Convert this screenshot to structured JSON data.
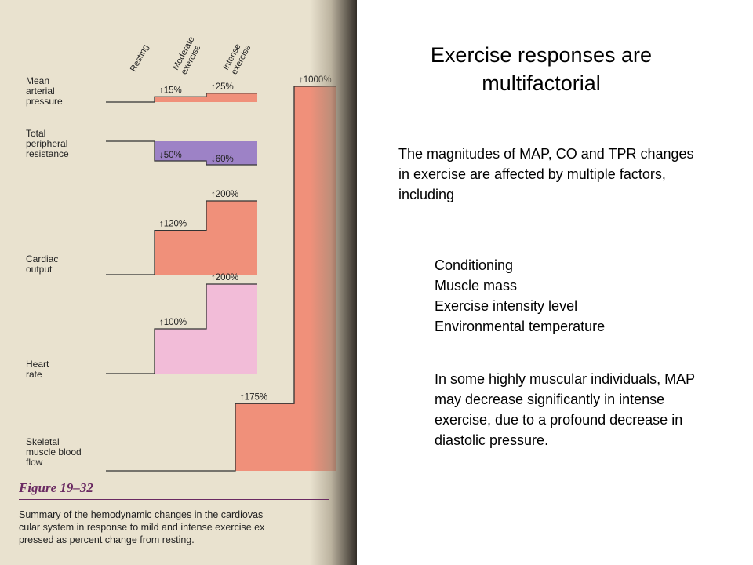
{
  "slide": {
    "title": "Exercise responses are multifactorial",
    "intro": "The magnitudes of MAP, CO and TPR changes in exercise are affected by multiple factors, including",
    "factors": [
      "Conditioning",
      "Muscle mass",
      "Exercise intensity level",
      "Environmental temperature"
    ],
    "note": "In some highly muscular individuals, MAP may decrease significantly in intense exercise, due to a profound decrease in diastolic pressure."
  },
  "figure": {
    "label": "Figure 19–32",
    "caption_lines": [
      "Summary of the hemodynamic changes in the cardiovas",
      "cular system in response to mild and intense exercise ex",
      "pressed as percent change from resting."
    ]
  },
  "chart_data": {
    "type": "bar",
    "categories": [
      "Resting",
      "Moderate exercise",
      "Intense exercise"
    ],
    "column_labels": [
      [
        "Resting"
      ],
      [
        "Moderate",
        "exercise"
      ],
      [
        "Intense",
        "exercise"
      ]
    ],
    "series": [
      {
        "name": "Mean arterial pressure",
        "label_lines": [
          "Mean",
          "arterial",
          "pressure"
        ],
        "changes": [
          "",
          "↑15%",
          "↑25%"
        ],
        "values": [
          0,
          15,
          25
        ],
        "color": "#f0907a"
      },
      {
        "name": "Total peripheral resistance",
        "label_lines": [
          "Total",
          "peripheral",
          "resistance"
        ],
        "changes": [
          "",
          "↓50%",
          "↓60%"
        ],
        "values": [
          0,
          -50,
          -60
        ],
        "color": "#9d82c6"
      },
      {
        "name": "Cardiac output",
        "label_lines": [
          "Cardiac",
          "output"
        ],
        "changes": [
          "",
          "↑120%",
          "↑200%"
        ],
        "values": [
          0,
          120,
          200
        ],
        "color": "#f0907a"
      },
      {
        "name": "Heart rate",
        "label_lines": [
          "Heart",
          "rate"
        ],
        "changes": [
          "",
          "↑100%",
          "↑200%"
        ],
        "values": [
          0,
          100,
          200
        ],
        "color": "#f2bcd8"
      },
      {
        "name": "Skeletal muscle blood flow",
        "label_lines": [
          "Skeletal",
          "muscle blood",
          "flow"
        ],
        "changes": [
          "",
          "↑175%",
          "↑1000%"
        ],
        "values": [
          0,
          175,
          1000
        ],
        "color": "#f0907a"
      }
    ]
  }
}
